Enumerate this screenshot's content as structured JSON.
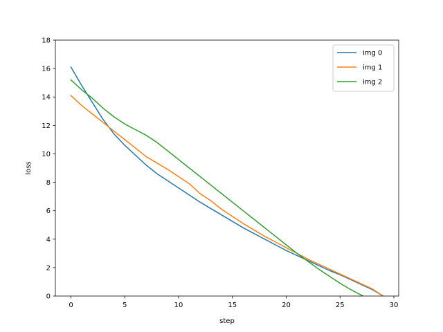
{
  "chart_data": {
    "type": "line",
    "title": "",
    "xlabel": "step",
    "ylabel": "loss",
    "xlim": [
      -1.45,
      30.45
    ],
    "ylim": [
      0,
      18
    ],
    "xticks": [
      0,
      5,
      10,
      15,
      20,
      25,
      30
    ],
    "yticks": [
      0,
      2,
      4,
      6,
      8,
      10,
      12,
      14,
      16,
      18
    ],
    "grid": false,
    "legend_position": "top-right",
    "x": [
      0,
      1,
      2,
      3,
      4,
      5,
      6,
      7,
      8,
      9,
      10,
      11,
      12,
      13,
      14,
      15,
      16,
      17,
      18,
      19,
      20,
      21,
      22,
      23,
      24,
      25,
      26,
      27,
      28,
      29
    ],
    "series": [
      {
        "name": "img 0",
        "color": "#1f77b4",
        "values": [
          16.1,
          14.8,
          13.6,
          12.4,
          11.4,
          10.6,
          9.9,
          9.2,
          8.6,
          8.1,
          7.6,
          7.1,
          6.6,
          6.15,
          5.7,
          5.25,
          4.8,
          4.4,
          4.0,
          3.6,
          3.2,
          2.85,
          2.5,
          2.15,
          1.8,
          1.5,
          1.15,
          0.8,
          0.45,
          0.0
        ]
      },
      {
        "name": "img 1",
        "color": "#ff7f0e",
        "values": [
          14.1,
          13.4,
          12.8,
          12.2,
          11.6,
          11.0,
          10.4,
          9.8,
          9.35,
          8.9,
          8.4,
          7.9,
          7.2,
          6.7,
          6.1,
          5.6,
          5.1,
          4.65,
          4.2,
          3.8,
          3.4,
          3.0,
          2.6,
          2.25,
          1.9,
          1.55,
          1.2,
          0.85,
          0.5,
          0.0
        ]
      },
      {
        "name": "img 2",
        "color": "#2ca02c",
        "values": [
          15.2,
          14.5,
          13.9,
          13.2,
          12.6,
          12.1,
          11.7,
          11.3,
          10.8,
          10.2,
          9.6,
          9.0,
          8.4,
          7.8,
          7.2,
          6.6,
          6.0,
          5.4,
          4.8,
          4.2,
          3.6,
          3.0,
          2.45,
          1.9,
          1.4,
          0.9,
          0.45,
          0.05,
          -0.35,
          -0.75
        ]
      }
    ]
  }
}
